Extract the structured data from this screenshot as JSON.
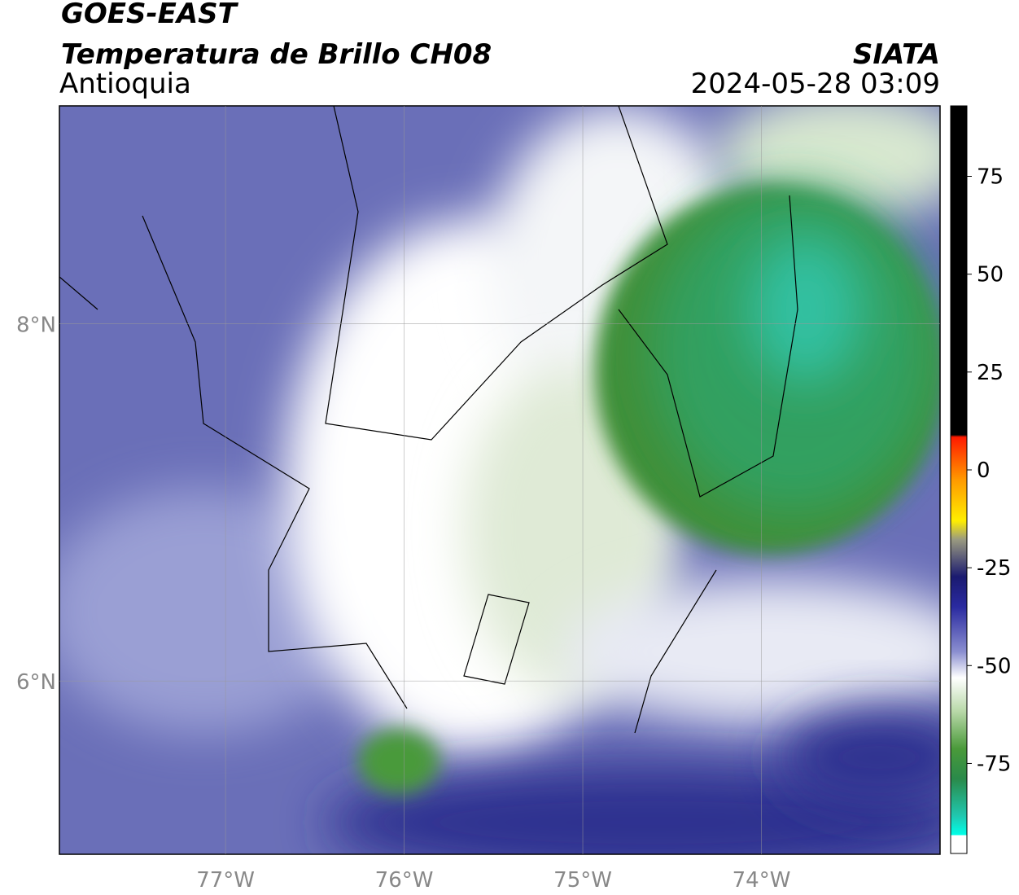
{
  "header": {
    "title": "GOES-EAST",
    "subtitle": "Temperatura de Brillo CH08",
    "region": "Antioquia",
    "source": "SIATA",
    "datetime": "2024-05-28 03:09"
  },
  "map": {
    "lonlim": [
      -77.93,
      -73.0
    ],
    "latlim": [
      5.03,
      9.22
    ],
    "lonticks": [
      {
        "value": -77,
        "label": "77°W"
      },
      {
        "value": -76,
        "label": "76°W"
      },
      {
        "value": -75,
        "label": "75°W"
      },
      {
        "value": -74,
        "label": "74°W"
      }
    ],
    "latticks": [
      {
        "value": 8,
        "label": "8°N"
      },
      {
        "value": 6,
        "label": "6°N"
      }
    ]
  },
  "colorbar": {
    "lim": [
      -98,
      93
    ],
    "ticks": [
      75,
      50,
      25,
      0,
      -25,
      -50,
      -75
    ]
  }
}
